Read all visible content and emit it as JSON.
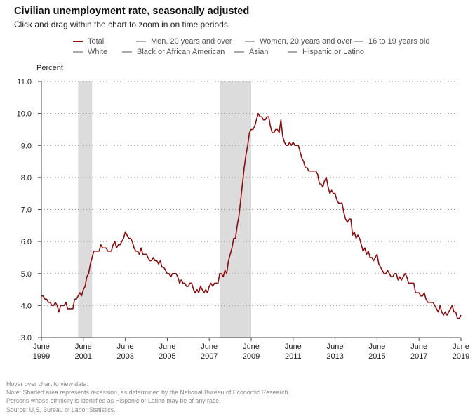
{
  "header": {
    "title": "Civilian unemployment rate, seasonally adjusted",
    "subtitle": "Click and drag within the chart to zoom in on time periods"
  },
  "legend": {
    "rows": [
      [
        {
          "label": "Total",
          "color": "#8b0f12",
          "active": true
        },
        {
          "label": "Men, 20 years and over",
          "color": "#aaaaaa",
          "active": false
        },
        {
          "label": "Women, 20 years and over",
          "color": "#aaaaaa",
          "active": false
        },
        {
          "label": "16 to 19 years old",
          "color": "#aaaaaa",
          "active": false
        }
      ],
      [
        {
          "label": "White",
          "color": "#aaaaaa",
          "active": false
        },
        {
          "label": "Black or African American",
          "color": "#aaaaaa",
          "active": false
        },
        {
          "label": "Asian",
          "color": "#aaaaaa",
          "active": false
        },
        {
          "label": "Hispanic or Latino",
          "color": "#aaaaaa",
          "active": false
        }
      ]
    ]
  },
  "chart_data": {
    "type": "line",
    "title": "Civilian unemployment rate, seasonally adjusted",
    "ylabel": "Percent",
    "xlabel": "",
    "ylim": [
      3.0,
      11.0
    ],
    "y_ticks": [
      "3.0",
      "4.0",
      "5.0",
      "6.0",
      "7.0",
      "8.0",
      "9.0",
      "10.0",
      "11.0"
    ],
    "xlim": [
      "1999-06",
      "2019-06"
    ],
    "x_ticks": [
      {
        "month": "June",
        "year": "1999"
      },
      {
        "month": "June",
        "year": "2001"
      },
      {
        "month": "June",
        "year": "2003"
      },
      {
        "month": "June",
        "year": "2005"
      },
      {
        "month": "June",
        "year": "2007"
      },
      {
        "month": "June",
        "year": "2009"
      },
      {
        "month": "June",
        "year": "2011"
      },
      {
        "month": "June",
        "year": "2013"
      },
      {
        "month": "June",
        "year": "2015"
      },
      {
        "month": "June",
        "year": "2017"
      },
      {
        "month": "June",
        "year": "2019"
      }
    ],
    "grid": "horizontal dotted",
    "recessions": [
      {
        "start": "2001-03",
        "end": "2001-11"
      },
      {
        "start": "2007-12",
        "end": "2009-06"
      }
    ],
    "series": [
      {
        "name": "Total",
        "color": "#8b0f12",
        "start": "1999-06",
        "frequency": "monthly",
        "values": [
          4.3,
          4.3,
          4.2,
          4.2,
          4.1,
          4.1,
          4.0,
          4.0,
          4.1,
          4.0,
          3.8,
          4.0,
          4.0,
          4.0,
          4.1,
          3.9,
          3.9,
          3.9,
          3.9,
          4.2,
          4.2,
          4.3,
          4.4,
          4.3,
          4.5,
          4.6,
          4.9,
          5.0,
          5.3,
          5.5,
          5.7,
          5.7,
          5.7,
          5.7,
          5.9,
          5.8,
          5.8,
          5.8,
          5.7,
          5.7,
          5.7,
          5.9,
          6.0,
          5.8,
          5.9,
          5.9,
          6.0,
          6.1,
          6.3,
          6.2,
          6.1,
          6.1,
          6.0,
          5.8,
          5.7,
          5.7,
          5.6,
          5.8,
          5.6,
          5.6,
          5.6,
          5.5,
          5.4,
          5.4,
          5.5,
          5.4,
          5.4,
          5.3,
          5.4,
          5.2,
          5.2,
          5.1,
          5.0,
          5.0,
          4.9,
          5.0,
          5.0,
          5.0,
          4.9,
          4.7,
          4.8,
          4.7,
          4.7,
          4.6,
          4.6,
          4.7,
          4.7,
          4.5,
          4.4,
          4.5,
          4.4,
          4.6,
          4.5,
          4.4,
          4.5,
          4.4,
          4.6,
          4.7,
          4.6,
          4.7,
          4.7,
          4.7,
          5.0,
          5.0,
          4.9,
          5.1,
          5.0,
          5.4,
          5.6,
          5.8,
          6.1,
          6.1,
          6.5,
          6.8,
          7.3,
          7.8,
          8.3,
          8.7,
          9.0,
          9.4,
          9.5,
          9.5,
          9.6,
          9.8,
          10.0,
          9.9,
          9.9,
          9.8,
          9.8,
          9.9,
          9.9,
          9.6,
          9.4,
          9.4,
          9.5,
          9.5,
          9.4,
          9.8,
          9.3,
          9.1,
          9.0,
          9.0,
          9.1,
          9.0,
          9.1,
          9.0,
          9.0,
          9.0,
          8.8,
          8.6,
          8.5,
          8.3,
          8.3,
          8.2,
          8.2,
          8.2,
          8.2,
          8.2,
          8.1,
          7.8,
          7.8,
          7.7,
          7.9,
          8.0,
          7.7,
          7.5,
          7.6,
          7.5,
          7.5,
          7.3,
          7.2,
          7.2,
          7.2,
          6.9,
          6.7,
          6.6,
          6.7,
          6.7,
          6.2,
          6.3,
          6.1,
          6.2,
          6.1,
          5.9,
          5.7,
          5.8,
          5.6,
          5.7,
          5.5,
          5.5,
          5.4,
          5.5,
          5.6,
          5.3,
          5.2,
          5.1,
          5.0,
          5.0,
          5.1,
          5.0,
          4.9,
          4.9,
          5.0,
          5.0,
          4.8,
          4.9,
          4.8,
          4.9,
          5.0,
          4.9,
          4.7,
          4.7,
          4.7,
          4.7,
          4.4,
          4.4,
          4.4,
          4.3,
          4.3,
          4.4,
          4.2,
          4.1,
          4.1,
          4.1,
          4.1,
          4.0,
          3.9,
          3.8,
          4.0,
          3.8,
          3.7,
          3.8,
          3.7,
          3.8,
          3.9,
          4.0,
          3.8,
          3.8,
          3.6,
          3.6,
          3.7
        ]
      }
    ]
  },
  "notes": [
    "Hover over chart to view data.",
    "Note: Shaded area represents recession, as determined by the National Bureau of Economic Research.",
    "Persons whose ethnicity is identified as Hispanic or Latino may be of any race.",
    "Source: U.S. Bureau of Labor Statistics."
  ]
}
